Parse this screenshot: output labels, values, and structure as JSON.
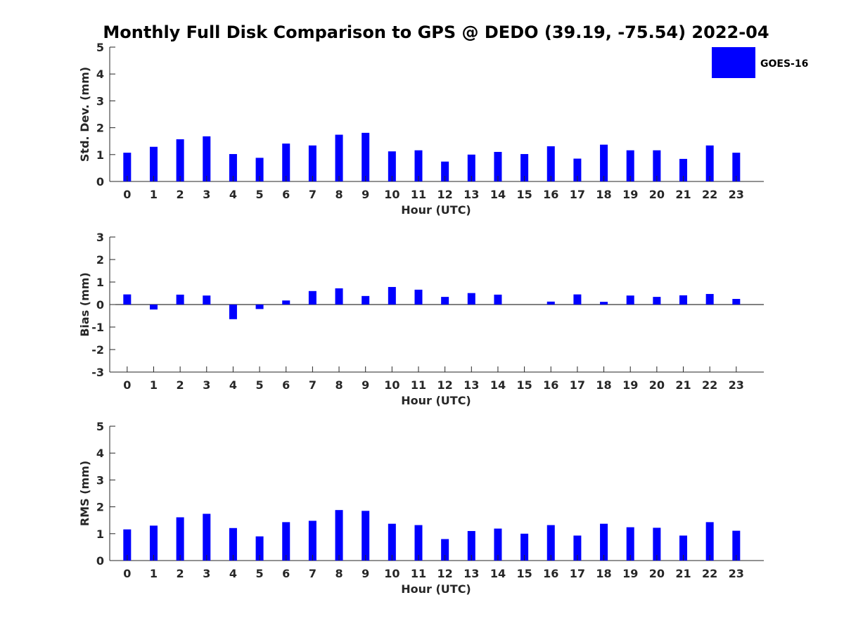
{
  "chart_data": {
    "title": "Monthly Full Disk Comparison to GPS @ DEDO (39.19, -75.54) 2022-04",
    "type": "bar",
    "series_name": "GOES-16",
    "bar_color": "#0000ff",
    "categories": [
      "0",
      "1",
      "2",
      "3",
      "4",
      "5",
      "6",
      "7",
      "8",
      "9",
      "10",
      "11",
      "12",
      "13",
      "14",
      "15",
      "16",
      "17",
      "18",
      "19",
      "20",
      "21",
      "22",
      "23"
    ],
    "legend": {
      "label": "GOES-16",
      "placement": "top-right"
    },
    "panels": [
      {
        "ylabel": "Std. Dev. (mm)",
        "xlabel": "Hour (UTC)",
        "ylim": [
          0,
          5
        ],
        "yticks": [
          "0",
          "1",
          "2",
          "3",
          "4",
          "5"
        ],
        "values": [
          1.07,
          1.29,
          1.57,
          1.68,
          1.02,
          0.88,
          1.41,
          1.34,
          1.74,
          1.81,
          1.12,
          1.16,
          0.74,
          1.0,
          1.1,
          1.02,
          1.31,
          0.85,
          1.37,
          1.16,
          1.16,
          0.84,
          1.34,
          1.07
        ]
      },
      {
        "ylabel": "Bias (mm)",
        "xlabel": "Hour (UTC)",
        "ylim": [
          -3,
          3
        ],
        "yticks": [
          "-3",
          "-2",
          "-1",
          "0",
          "1",
          "2",
          "3"
        ],
        "values": [
          0.45,
          -0.22,
          0.44,
          0.4,
          -0.65,
          -0.2,
          0.18,
          0.6,
          0.72,
          0.38,
          0.78,
          0.66,
          0.34,
          0.51,
          0.44,
          0.0,
          0.13,
          0.45,
          0.12,
          0.4,
          0.34,
          0.41,
          0.47,
          0.25
        ]
      },
      {
        "ylabel": "RMS (mm)",
        "xlabel": "Hour (UTC)",
        "ylim": [
          0,
          5
        ],
        "yticks": [
          "0",
          "1",
          "2",
          "3",
          "4",
          "5"
        ],
        "values": [
          1.16,
          1.3,
          1.61,
          1.74,
          1.21,
          0.9,
          1.43,
          1.48,
          1.88,
          1.85,
          1.37,
          1.32,
          0.8,
          1.1,
          1.19,
          1.0,
          1.32,
          0.93,
          1.37,
          1.24,
          1.22,
          0.93,
          1.43,
          1.11
        ]
      }
    ]
  }
}
